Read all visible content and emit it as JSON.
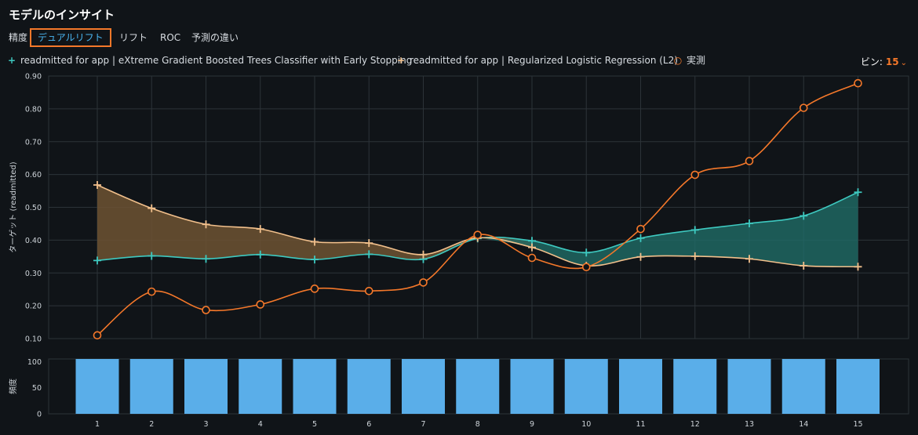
{
  "page": {
    "title": "モデルのインサイト",
    "tabs": [
      {
        "label": "精度",
        "active": false
      },
      {
        "label": "デュアルリフト",
        "active": true
      },
      {
        "label": "リフト",
        "active": false
      },
      {
        "label": "ROC",
        "active": false
      },
      {
        "label": "予測の違い",
        "active": false
      }
    ],
    "bins_label": "ビン:",
    "bins_value": "15",
    "colors": {
      "background": "#101418",
      "series_xgb": "#3ec9c0",
      "series_logreg": "#f2c08c",
      "series_actual": "#f5782a",
      "fill_xgb": "#1f6b66",
      "fill_logreg": "#6d5233",
      "bars": "#5aaee9",
      "active_tab": "#4ab6f2",
      "active_tab_border": "#f5782a"
    }
  },
  "chart_data": [
    {
      "type": "line",
      "ylabel": "ターゲット (readmitted)",
      "ylim": [
        0.1,
        0.9
      ],
      "yticks": [
        "0.90",
        "0.80",
        "0.70",
        "0.60",
        "0.50",
        "0.40",
        "0.30",
        "0.20",
        "0.10"
      ],
      "x": [
        1,
        2,
        3,
        4,
        5,
        6,
        7,
        8,
        9,
        10,
        11,
        12,
        13,
        14,
        15
      ],
      "grid": true,
      "legend": "top-left",
      "series": [
        {
          "name": "readmitted for app | eXtreme Gradient Boosted Trees Classifier with Early Stopping",
          "marker": "+",
          "color": "#3ec9c0",
          "values": [
            0.338,
            0.352,
            0.343,
            0.356,
            0.341,
            0.357,
            0.342,
            0.405,
            0.398,
            0.362,
            0.406,
            0.431,
            0.451,
            0.474,
            0.546
          ]
        },
        {
          "name": "readmitted for app | Regularized Logistic Regression (L2)",
          "marker": "+",
          "color": "#f2c08c",
          "values": [
            0.568,
            0.497,
            0.448,
            0.434,
            0.395,
            0.391,
            0.356,
            0.407,
            0.378,
            0.322,
            0.349,
            0.351,
            0.343,
            0.322,
            0.319
          ]
        },
        {
          "name": "実測",
          "marker": "o",
          "color": "#f5782a",
          "values": [
            0.11,
            0.243,
            0.187,
            0.204,
            0.252,
            0.245,
            0.271,
            0.416,
            0.346,
            0.318,
            0.434,
            0.599,
            0.641,
            0.803,
            0.878
          ]
        }
      ]
    },
    {
      "type": "bar",
      "ylabel": "頻度",
      "ylim": [
        0,
        105
      ],
      "yticks": [
        "100",
        "50",
        "0"
      ],
      "categories": [
        "1",
        "2",
        "3",
        "4",
        "5",
        "6",
        "7",
        "8",
        "9",
        "10",
        "11",
        "12",
        "13",
        "14",
        "15"
      ],
      "values": [
        105,
        105,
        105,
        105,
        105,
        105,
        105,
        105,
        105,
        105,
        105,
        105,
        105,
        105,
        105
      ],
      "color": "#5aaee9"
    }
  ]
}
